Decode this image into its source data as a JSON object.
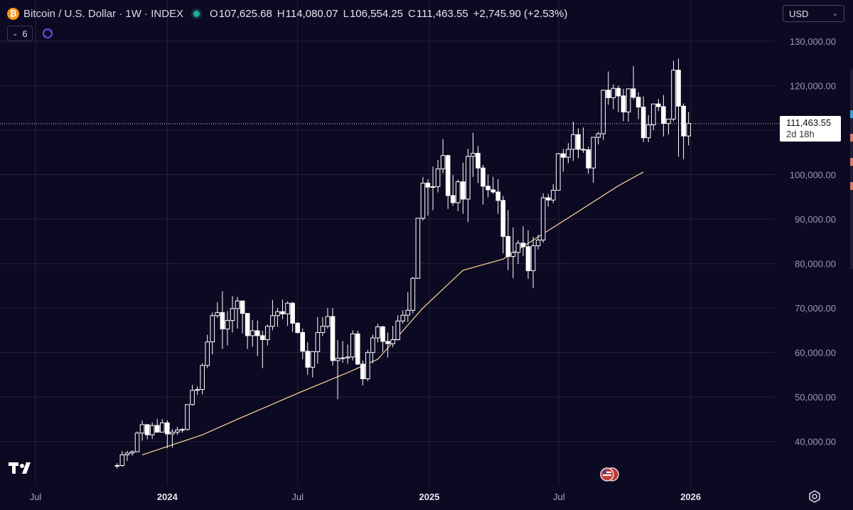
{
  "header": {
    "symbol_title": "Bitcoin / U.S. Dollar · 1W · INDEX",
    "coin_glyph": "₿",
    "ohlc": {
      "o_label": "O",
      "o_value": "107,625.68",
      "h_label": "H",
      "h_value": "114,080.07",
      "l_label": "L",
      "l_value": "106,554.25",
      "c_label": "C",
      "c_value": "111,463.55",
      "change": "+2,745.90 (+2.53%)"
    },
    "indicator_count": "6"
  },
  "currency": {
    "selected": "USD"
  },
  "price_tag": {
    "price": "111,463.55",
    "countdown": "2d 18h"
  },
  "colors": {
    "background": "#0c0a22",
    "grid": "#24223c",
    "candle": "#ffffff",
    "ma_line": "#f0c890",
    "live_dot": "#22ab94",
    "coin": "#f7931a"
  },
  "chart_data": {
    "type": "candlestick",
    "title": "Bitcoin / U.S. Dollar · 1W · INDEX",
    "timeframe": "1W",
    "x_ticks": [
      "Jul",
      "2024",
      "Jul",
      "2025",
      "Jul",
      "2026"
    ],
    "y_ticks": [
      "40,000.00",
      "50,000.00",
      "60,000.00",
      "70,000.00",
      "80,000.00",
      "90,000.00",
      "100,000.00",
      "110,000.00",
      "120,000.00",
      "130,000.00"
    ],
    "y_tick_values": [
      40000,
      50000,
      60000,
      70000,
      80000,
      90000,
      100000,
      110000,
      120000,
      130000
    ],
    "ylim": [
      35000,
      133000
    ],
    "grid": true,
    "last_price": 111463.55,
    "x_axis_dates": {
      "ticks": [
        "2023-07-01",
        "2024-01-01",
        "2024-07-01",
        "2025-01-01",
        "2025-07-01",
        "2026-01-01"
      ],
      "first_candle": "2023-10-23",
      "candle_step_days": 7
    },
    "candles_ohlc": [
      [
        34500,
        35100,
        33900,
        34600
      ],
      [
        34600,
        37900,
        34300,
        37000
      ],
      [
        37000,
        37900,
        35600,
        37400
      ],
      [
        37400,
        38000,
        36800,
        37700
      ],
      [
        37700,
        42300,
        37600,
        41900
      ],
      [
        41900,
        44700,
        40200,
        43800
      ],
      [
        43800,
        43500,
        40500,
        41500
      ],
      [
        41500,
        44300,
        40600,
        43600
      ],
      [
        43600,
        45100,
        42000,
        42100
      ],
      [
        42100,
        45000,
        42000,
        44200
      ],
      [
        44200,
        44800,
        38500,
        41700
      ],
      [
        41700,
        42800,
        38600,
        42100
      ],
      [
        42100,
        43300,
        41500,
        42600
      ],
      [
        42600,
        43000,
        42000,
        42700
      ],
      [
        42700,
        48300,
        42500,
        48300
      ],
      [
        48300,
        52700,
        48100,
        51500
      ],
      [
        51500,
        52400,
        50500,
        51700
      ],
      [
        51700,
        57600,
        50600,
        57100
      ],
      [
        57100,
        64000,
        56500,
        62400
      ],
      [
        62400,
        69000,
        59600,
        68300
      ],
      [
        68300,
        71300,
        67800,
        69000
      ],
      [
        69000,
        73800,
        60800,
        65300
      ],
      [
        65300,
        69300,
        61600,
        67200
      ],
      [
        67200,
        72700,
        64500,
        69900
      ],
      [
        69900,
        72500,
        65400,
        71600
      ],
      [
        71600,
        71600,
        64300,
        68800
      ],
      [
        68800,
        68900,
        60800,
        63800
      ],
      [
        63800,
        67300,
        61300,
        64900
      ],
      [
        64900,
        67200,
        59200,
        63800
      ],
      [
        63800,
        64900,
        56500,
        62900
      ],
      [
        62900,
        66300,
        61600,
        65900
      ],
      [
        65900,
        71800,
        65000,
        68300
      ],
      [
        68300,
        70000,
        65800,
        69200
      ],
      [
        69200,
        71900,
        67500,
        68700
      ],
      [
        68700,
        71500,
        66000,
        71100
      ],
      [
        71100,
        71400,
        64600,
        66600
      ],
      [
        66600,
        66900,
        64200,
        64500
      ],
      [
        64500,
        65400,
        58500,
        60300
      ],
      [
        60300,
        62300,
        55000,
        56700
      ],
      [
        56700,
        60300,
        54400,
        60200
      ],
      [
        60200,
        68000,
        57500,
        64500
      ],
      [
        64500,
        68000,
        63700,
        65900
      ],
      [
        65900,
        70000,
        65400,
        68100
      ],
      [
        68100,
        70000,
        57100,
        58200
      ],
      [
        58200,
        62800,
        49500,
        58700
      ],
      [
        58700,
        62600,
        57700,
        58800
      ],
      [
        58800,
        61800,
        57500,
        59000
      ],
      [
        59000,
        65000,
        58200,
        64200
      ],
      [
        64200,
        64900,
        57200,
        57400
      ],
      [
        57400,
        58200,
        52600,
        54100
      ],
      [
        54100,
        60600,
        53600,
        60000
      ],
      [
        60000,
        64000,
        57600,
        63300
      ],
      [
        63300,
        66500,
        62300,
        65800
      ],
      [
        65800,
        66000,
        60100,
        62500
      ],
      [
        62500,
        64500,
        58900,
        62000
      ],
      [
        62000,
        66000,
        61200,
        62900
      ],
      [
        62900,
        68400,
        62700,
        67100
      ],
      [
        67100,
        69500,
        66500,
        68400
      ],
      [
        68400,
        73600,
        66900,
        69500
      ],
      [
        69500,
        77000,
        68800,
        76700
      ],
      [
        76700,
        90200,
        76600,
        90200
      ],
      [
        90200,
        99500,
        89700,
        98100
      ],
      [
        98100,
        99000,
        90800,
        97200
      ],
      [
        97200,
        101800,
        92000,
        97300
      ],
      [
        97300,
        103300,
        96000,
        101300
      ],
      [
        101300,
        108000,
        100300,
        104300
      ],
      [
        104300,
        104500,
        92300,
        95300
      ],
      [
        95300,
        99900,
        93000,
        93700
      ],
      [
        93700,
        98900,
        91800,
        98400
      ],
      [
        98400,
        102700,
        91200,
        94500
      ],
      [
        94500,
        105800,
        89300,
        104100
      ],
      [
        104100,
        109400,
        99500,
        104800
      ],
      [
        104800,
        106400,
        98100,
        101500
      ],
      [
        101500,
        102200,
        93300,
        97400
      ],
      [
        97400,
        100000,
        94900,
        96600
      ],
      [
        96600,
        99500,
        95700,
        96100
      ],
      [
        96100,
        99000,
        91200,
        94200
      ],
      [
        94200,
        95200,
        82300,
        86100
      ],
      [
        86100,
        92000,
        78500,
        81600
      ],
      [
        81600,
        88100,
        76700,
        82500
      ],
      [
        82500,
        85300,
        79900,
        84600
      ],
      [
        84600,
        88400,
        81700,
        83800
      ],
      [
        83800,
        87500,
        76600,
        78400
      ],
      [
        78400,
        86000,
        74500,
        84000
      ],
      [
        84000,
        86500,
        83200,
        85300
      ],
      [
        85300,
        95800,
        84700,
        94800
      ],
      [
        94800,
        95700,
        92800,
        94300
      ],
      [
        94300,
        97900,
        93600,
        96500
      ],
      [
        96500,
        104900,
        96400,
        104700
      ],
      [
        104700,
        105800,
        100700,
        103900
      ],
      [
        103900,
        107100,
        102600,
        105700
      ],
      [
        105700,
        111900,
        103100,
        109000
      ],
      [
        109000,
        110400,
        103700,
        105700
      ],
      [
        105700,
        110600,
        104900,
        105600
      ],
      [
        105600,
        106300,
        100200,
        101500
      ],
      [
        101500,
        108400,
        98200,
        108400
      ],
      [
        108400,
        109600,
        106800,
        109200
      ],
      [
        109200,
        118900,
        107800,
        119000
      ],
      [
        119000,
        123200,
        115700,
        117300
      ],
      [
        117300,
        120300,
        114700,
        119400
      ],
      [
        119400,
        120000,
        114100,
        117700
      ],
      [
        117700,
        119300,
        112000,
        114100
      ],
      [
        114100,
        119200,
        111900,
        119300
      ],
      [
        119300,
        124400,
        116900,
        117400
      ],
      [
        117400,
        118500,
        112500,
        115200
      ],
      [
        115200,
        117600,
        107300,
        108300
      ],
      [
        108300,
        113400,
        107300,
        111200
      ],
      [
        111200,
        115000,
        110000,
        115900
      ],
      [
        115900,
        117000,
        114300,
        115300
      ],
      [
        115300,
        117900,
        108600,
        111500
      ],
      [
        111500,
        112500,
        109000,
        112500
      ],
      [
        112500,
        125600,
        112000,
        123500
      ],
      [
        123500,
        126100,
        104000,
        115400
      ],
      [
        115400,
        116000,
        103500,
        108700
      ],
      [
        108700,
        114100,
        106600,
        111500
      ]
    ],
    "ma_series": {
      "x": [
        "2023-11-27",
        "2024-02-19",
        "2024-04-08",
        "2024-07-08",
        "2024-09-09",
        "2024-10-21",
        "2024-12-23",
        "2025-02-17",
        "2025-04-14",
        "2025-07-21",
        "2025-09-22",
        "2025-10-27"
      ],
      "values": [
        37000,
        41500,
        45000,
        51300,
        55500,
        58500,
        70000,
        78500,
        81000,
        91000,
        97500,
        100600
      ]
    }
  }
}
